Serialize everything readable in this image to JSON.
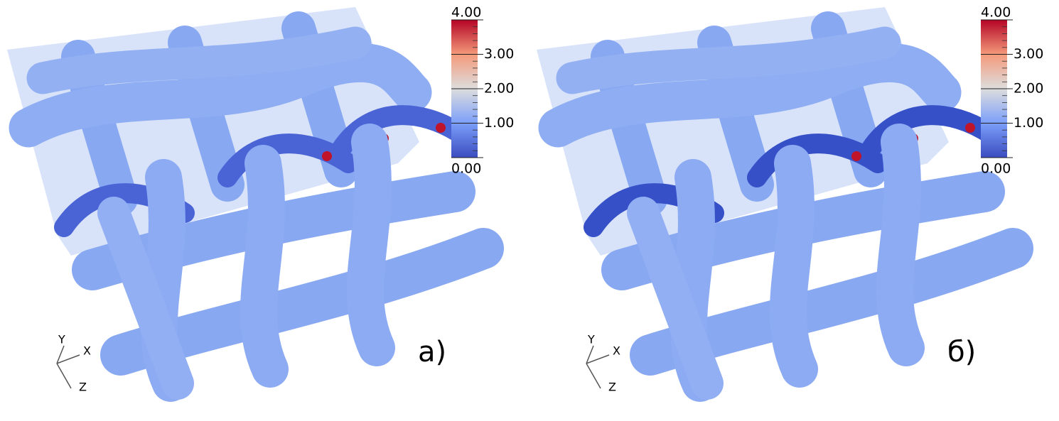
{
  "panels": [
    {
      "label": "а)",
      "axes": [
        "Y",
        "X",
        "Z"
      ],
      "colorbar": {
        "range": [
          0,
          4
        ],
        "ticks": [
          {
            "value": 4,
            "label": "4.00"
          },
          {
            "value": 3,
            "label": "3.00"
          },
          {
            "value": 2,
            "label": "2.00"
          },
          {
            "value": 1,
            "label": "1.00"
          },
          {
            "value": 0,
            "label": "0.00"
          }
        ]
      }
    },
    {
      "label": "б)",
      "axes": [
        "Y",
        "X",
        "Z"
      ],
      "colorbar": {
        "range": [
          0,
          4
        ],
        "ticks": [
          {
            "value": 4,
            "label": "4.00"
          },
          {
            "value": 3,
            "label": "3.00"
          },
          {
            "value": 2,
            "label": "2.00"
          },
          {
            "value": 1,
            "label": "1.00"
          },
          {
            "value": 0,
            "label": "0.00"
          }
        ]
      }
    }
  ]
}
